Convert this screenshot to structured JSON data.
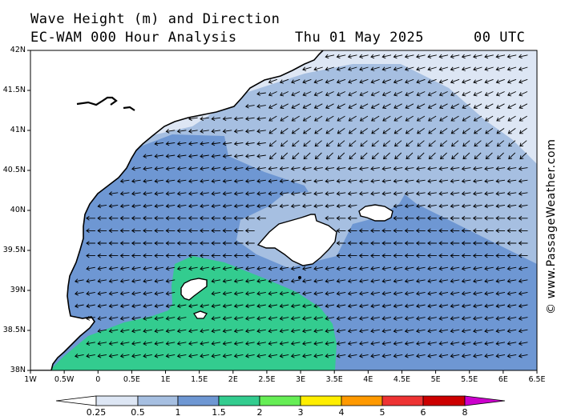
{
  "title": {
    "line1": "Wave Height (m) and Direction",
    "line2": "EC-WAM 000 Hour Analysis",
    "date": "Thu 01 May 2025",
    "time": "00 UTC"
  },
  "credit": "© www.PassageWeather.com",
  "map": {
    "lat_labels": [
      "42N",
      "41.5N",
      "41N",
      "40.5N",
      "40N",
      "39.5N",
      "39N",
      "38.5N",
      "38N"
    ],
    "lon_labels": [
      "1W",
      "0.5W",
      "0",
      "0.5E",
      "1E",
      "1.5E",
      "2E",
      "2.5E",
      "3E",
      "3.5E",
      "4E",
      "4.5E",
      "5E",
      "5.5E",
      "6E",
      "6.5E"
    ],
    "extent": {
      "lon_min": -1,
      "lon_max": 6.5,
      "lat_min": 38,
      "lat_max": 42
    },
    "colors": {
      "land": "#ffffff",
      "coast": "#000000",
      "band_0_25_0_5": "#dde6f4",
      "band_0_5_1": "#a6bfe1",
      "band_1_1_5": "#6e97d3",
      "band_1_5_2": "#33cc8f"
    },
    "wave_direction": "waves travelling toward the west and north-west"
  },
  "colorbar": {
    "labels": [
      "0.25",
      "0.5",
      "1",
      "1.5",
      "2",
      "3",
      "4",
      "5",
      "6",
      "8"
    ],
    "colors": [
      "#dde6f4",
      "#a6bfe1",
      "#6e97d3",
      "#33cc8f",
      "#66ee55",
      "#ffee00",
      "#ff9900",
      "#ee3333",
      "#cc0000",
      "#cc00cc"
    ]
  }
}
